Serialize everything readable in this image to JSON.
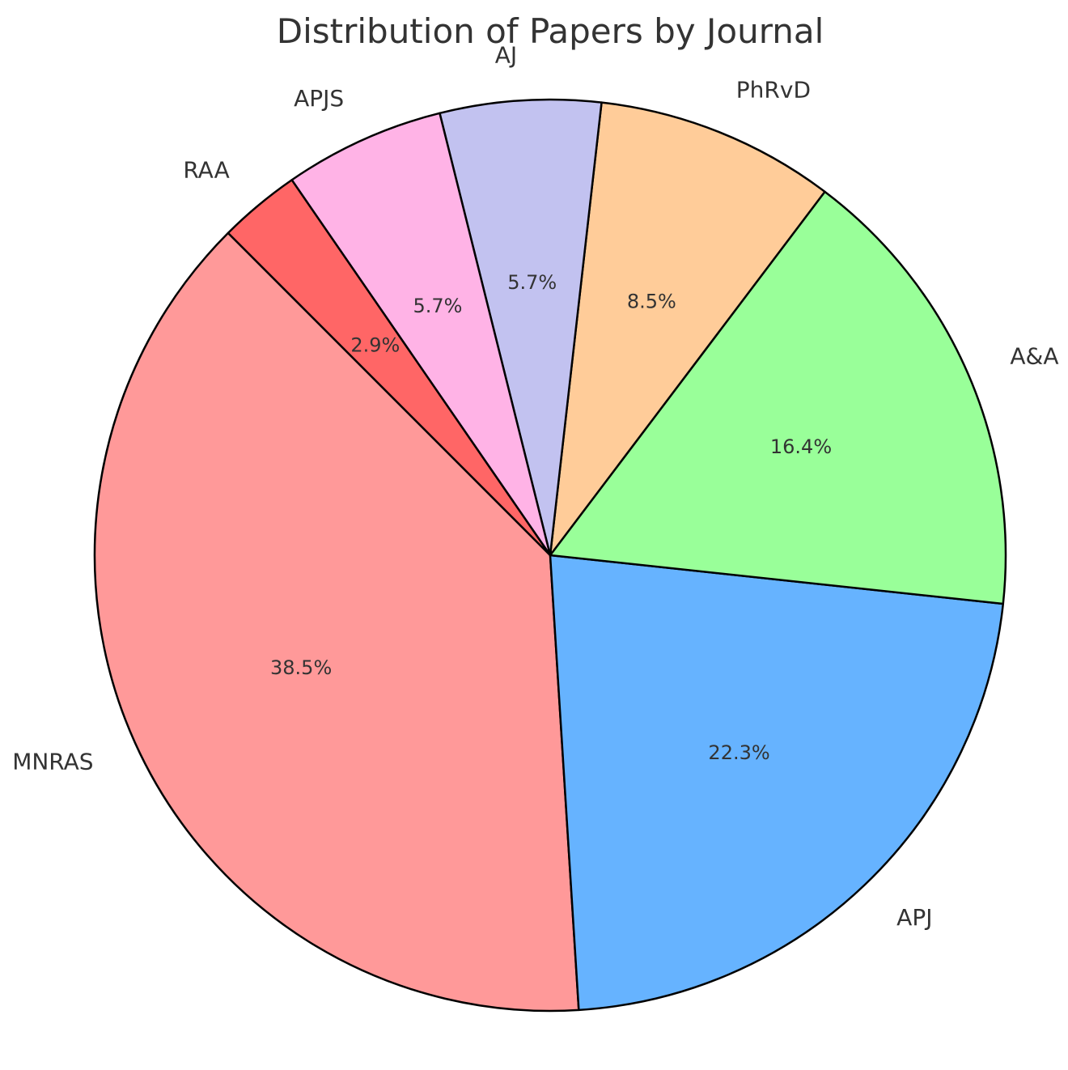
{
  "chart_data": {
    "type": "pie",
    "title": "Distribution of Papers by Journal",
    "start_angle_deg": 135,
    "direction": "counterclockwise",
    "slices": [
      {
        "label": "MNRAS",
        "value": 38.5,
        "pct_label": "38.5%",
        "color": "#ff9999"
      },
      {
        "label": "APJ",
        "value": 22.3,
        "pct_label": "22.3%",
        "color": "#66b3ff"
      },
      {
        "label": "A&A",
        "value": 16.4,
        "pct_label": "16.4%",
        "color": "#99ff99"
      },
      {
        "label": "PhRvD",
        "value": 8.5,
        "pct_label": "8.5%",
        "color": "#ffcc99"
      },
      {
        "label": "AJ",
        "value": 5.7,
        "pct_label": "5.7%",
        "color": "#c2c2f0"
      },
      {
        "label": "APJS",
        "value": 5.7,
        "pct_label": "5.7%",
        "color": "#ffb3e6"
      },
      {
        "label": "RAA",
        "value": 2.9,
        "pct_label": "2.9%",
        "color": "#ff6666"
      }
    ]
  }
}
